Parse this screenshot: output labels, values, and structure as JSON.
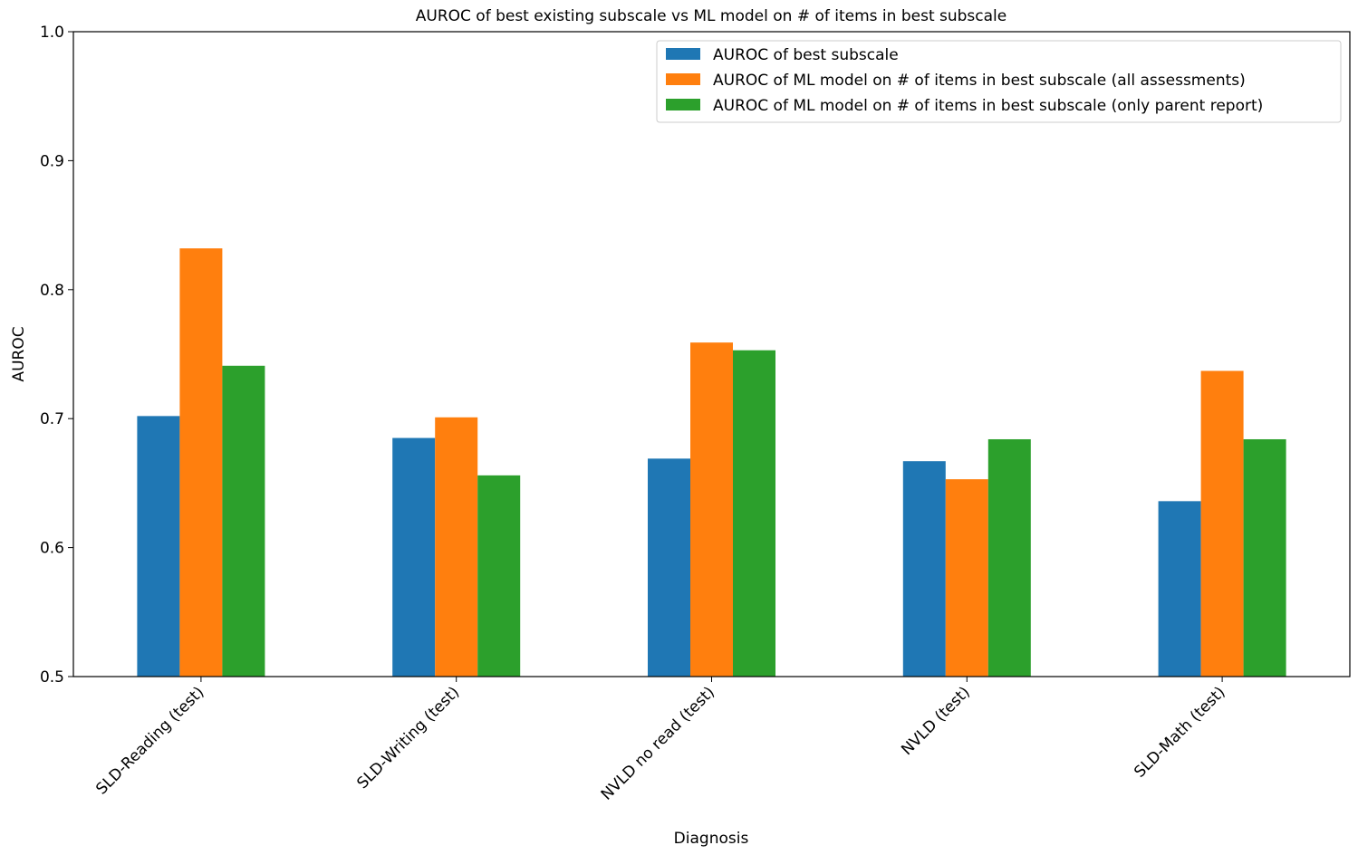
{
  "chart_data": {
    "type": "bar",
    "title": "AUROC of best existing subscale vs ML model on # of items in best subscale",
    "xlabel": "Diagnosis",
    "ylabel": "AUROC",
    "ylim": [
      0.5,
      1.0
    ],
    "yticks": [
      "0.5",
      "0.6",
      "0.7",
      "0.8",
      "0.9",
      "1.0"
    ],
    "categories": [
      "SLD-Reading (test)",
      "SLD-Writing (test)",
      "NVLD no read (test)",
      "NVLD (test)",
      "SLD-Math (test)"
    ],
    "series": [
      {
        "name": "AUROC of best subscale",
        "color": "#1f77b4",
        "values": [
          0.702,
          0.685,
          0.669,
          0.667,
          0.636
        ]
      },
      {
        "name": "AUROC of ML model on # of items in best subscale (all assessments)",
        "color": "#ff7f0e",
        "values": [
          0.832,
          0.701,
          0.759,
          0.653,
          0.737
        ]
      },
      {
        "name": "AUROC of ML model on # of items in best subscale (only parent report)",
        "color": "#2ca02c",
        "values": [
          0.741,
          0.656,
          0.753,
          0.684,
          0.684
        ]
      }
    ],
    "grid": false,
    "legend_position": "top-right"
  }
}
